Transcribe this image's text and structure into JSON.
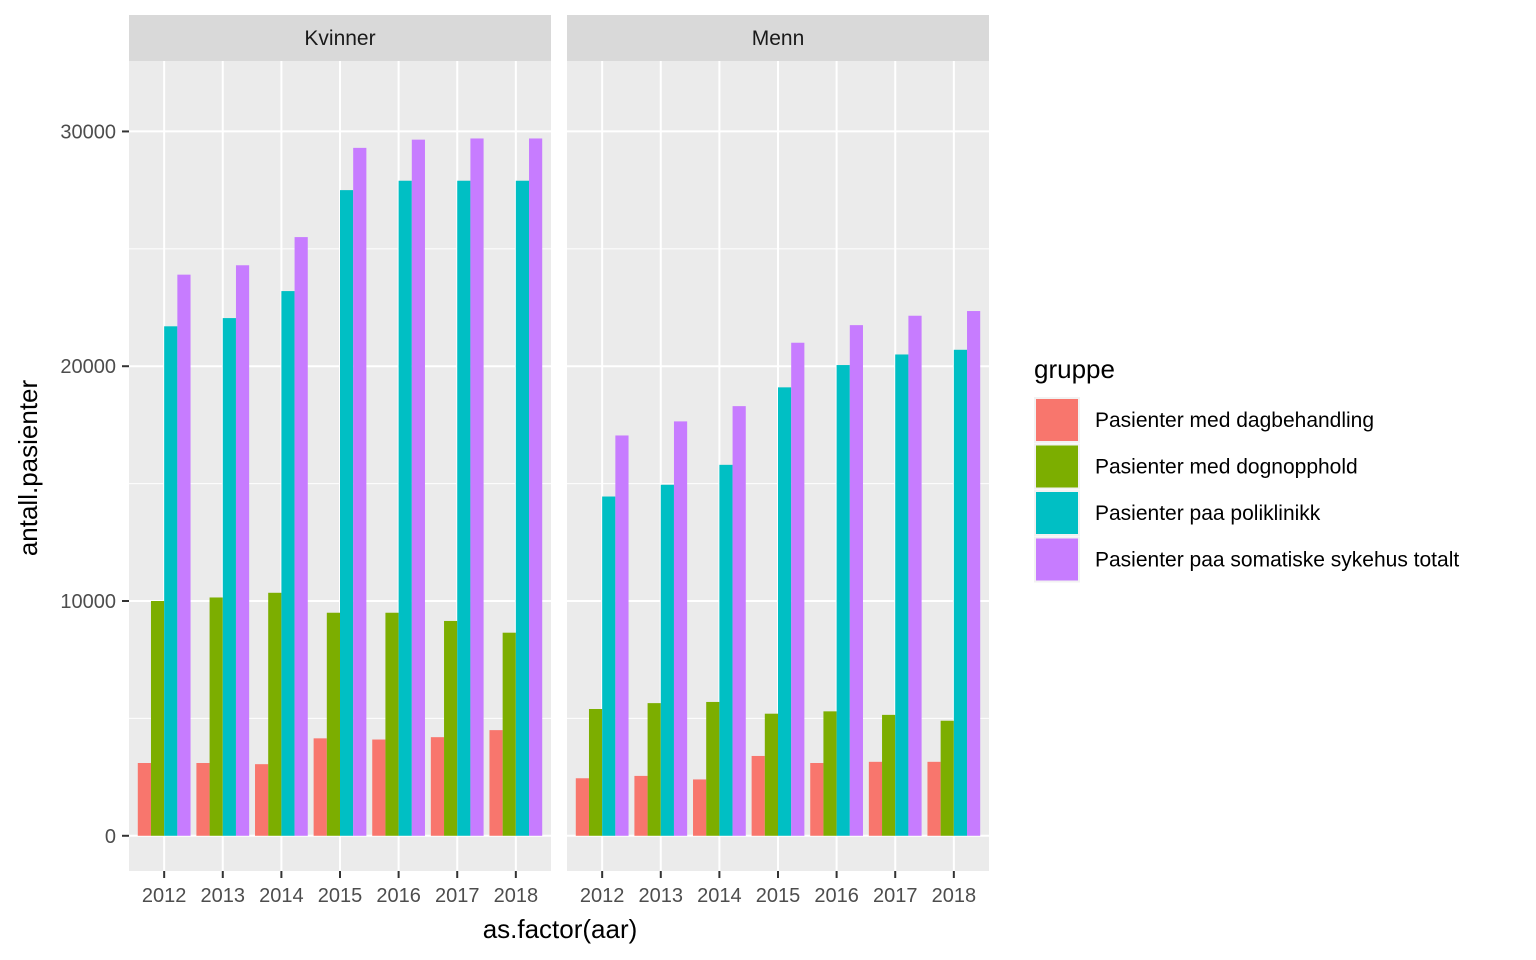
{
  "chart_data": {
    "type": "bar",
    "xlabel": "as.factor(aar)",
    "ylabel": "antall.pasienter",
    "ylim": [
      -1500,
      33000
    ],
    "yticks": [
      0,
      10000,
      20000,
      30000
    ],
    "ytick_labels": [
      "0",
      "10000",
      "20000",
      "30000"
    ],
    "categories": [
      "2012",
      "2013",
      "2014",
      "2015",
      "2016",
      "2017",
      "2018"
    ],
    "legend": {
      "title": "gruppe",
      "entries": [
        {
          "name": "Pasienter med dagbehandling",
          "color": "#F8766D"
        },
        {
          "name": "Pasienter med dognopphold",
          "color": "#7CAE00"
        },
        {
          "name": "Pasienter paa poliklinikk",
          "color": "#00BFC4"
        },
        {
          "name": "Pasienter paa somatiske sykehus totalt",
          "color": "#C77CFF"
        }
      ]
    },
    "panels": [
      {
        "title": "Kvinner",
        "series": [
          {
            "name": "Pasienter med dagbehandling",
            "values": [
              3100,
              3100,
              3050,
              4150,
              4100,
              4200,
              4500
            ]
          },
          {
            "name": "Pasienter med dognopphold",
            "values": [
              10000,
              10150,
              10350,
              9500,
              9500,
              9150,
              8650
            ]
          },
          {
            "name": "Pasienter paa poliklinikk",
            "values": [
              21700,
              22050,
              23200,
              27500,
              27900,
              27900,
              27900
            ]
          },
          {
            "name": "Pasienter paa somatiske sykehus totalt",
            "values": [
              23900,
              24300,
              25500,
              29300,
              29650,
              29700,
              29700
            ]
          }
        ]
      },
      {
        "title": "Menn",
        "series": [
          {
            "name": "Pasienter med dagbehandling",
            "values": [
              2450,
              2550,
              2400,
              3400,
              3100,
              3150,
              3150
            ]
          },
          {
            "name": "Pasienter med dognopphold",
            "values": [
              5400,
              5650,
              5700,
              5200,
              5300,
              5150,
              4900
            ]
          },
          {
            "name": "Pasienter paa poliklinikk",
            "values": [
              14450,
              14950,
              15800,
              19100,
              20050,
              20500,
              20700
            ]
          },
          {
            "name": "Pasienter paa somatiske sykehus totalt",
            "values": [
              17050,
              17650,
              18300,
              21000,
              21750,
              22150,
              22350
            ]
          }
        ]
      }
    ]
  }
}
